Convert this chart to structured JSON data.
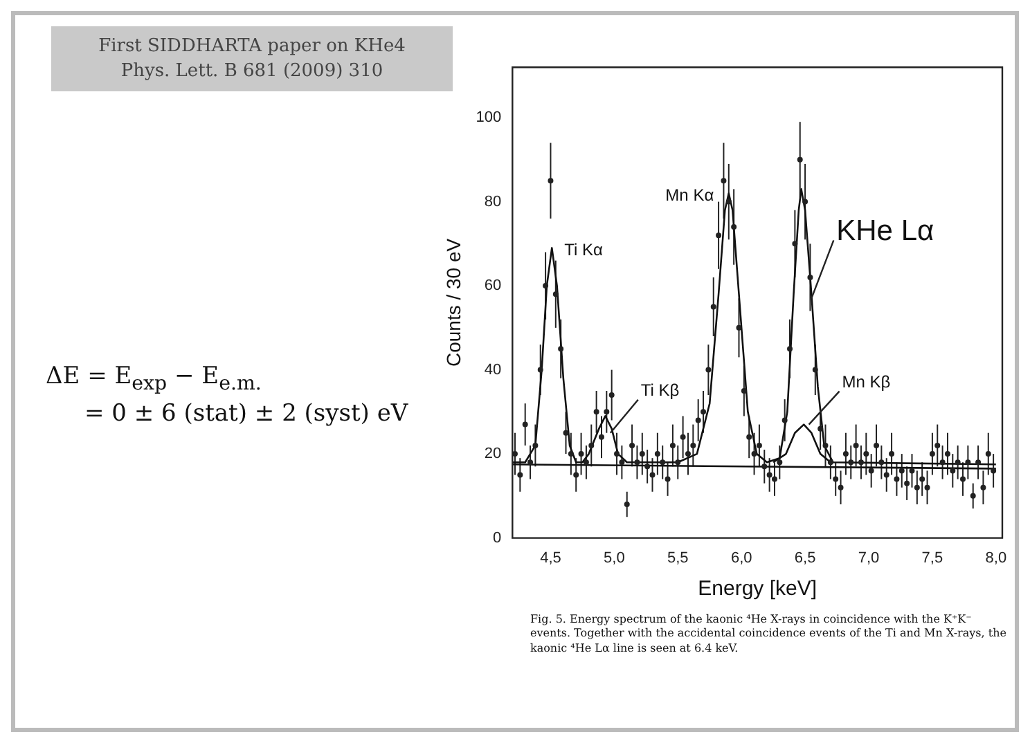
{
  "chart_data": {
    "type": "scatter",
    "title": "First SIDDHARTA paper on KHe4",
    "subtitle": "Phys. Lett. B 681 (2009) 310",
    "xlabel": "Energy [keV]",
    "ylabel": "Counts / 30 eV",
    "xlim": [
      4.2,
      8.05
    ],
    "xticks": [
      {
        "value": 4.5,
        "label": "4,5"
      },
      {
        "value": 5.0,
        "label": "5,0"
      },
      {
        "value": 5.5,
        "label": "5,5"
      },
      {
        "value": 6.0,
        "label": "6,0"
      },
      {
        "value": 6.5,
        "label": "6,5"
      },
      {
        "value": 7.0,
        "label": "7,0"
      },
      {
        "value": 7.5,
        "label": "7,5"
      },
      {
        "value": 8.0,
        "label": "8,0"
      }
    ],
    "ylim": [
      0,
      112
    ],
    "yticks": [
      0,
      20,
      40,
      60,
      80,
      100
    ],
    "grid": false,
    "legend": false,
    "series": [
      {
        "type": "scatter",
        "color": "#222222",
        "marker": "circle",
        "x": [
          4.22,
          4.26,
          4.3,
          4.34,
          4.38,
          4.42,
          4.46,
          4.5,
          4.54,
          4.58,
          4.62,
          4.66,
          4.7,
          4.74,
          4.78,
          4.82,
          4.86,
          4.9,
          4.94,
          4.98,
          5.02,
          5.06,
          5.1,
          5.14,
          5.18,
          5.22,
          5.26,
          5.3,
          5.34,
          5.38,
          5.42,
          5.46,
          5.5,
          5.54,
          5.58,
          5.62,
          5.66,
          5.7,
          5.74,
          5.78,
          5.82,
          5.86,
          5.9,
          5.94,
          5.98,
          6.02,
          6.06,
          6.1,
          6.14,
          6.18,
          6.22,
          6.26,
          6.3,
          6.34,
          6.38,
          6.42,
          6.46,
          6.5,
          6.54,
          6.58,
          6.62,
          6.66,
          6.7,
          6.74,
          6.78,
          6.82,
          6.86,
          6.9,
          6.94,
          6.98,
          7.02,
          7.06,
          7.1,
          7.14,
          7.18,
          7.22,
          7.26,
          7.3,
          7.34,
          7.38,
          7.42,
          7.46,
          7.5,
          7.54,
          7.58,
          7.62,
          7.66,
          7.7,
          7.74,
          7.78,
          7.82,
          7.86,
          7.9,
          7.94,
          7.98
        ],
        "values": [
          20,
          15,
          27,
          18,
          22,
          40,
          60,
          85,
          58,
          45,
          25,
          20,
          15,
          20,
          18,
          22,
          30,
          24,
          30,
          34,
          20,
          18,
          8,
          22,
          18,
          20,
          17,
          15,
          20,
          18,
          14,
          22,
          18,
          24,
          20,
          22,
          28,
          30,
          40,
          55,
          72,
          85,
          80,
          74,
          50,
          35,
          24,
          20,
          22,
          17,
          15,
          14,
          18,
          28,
          45,
          70,
          90,
          80,
          62,
          40,
          26,
          22,
          18,
          14,
          12,
          20,
          18,
          22,
          18,
          20,
          16,
          22,
          18,
          15,
          20,
          14,
          16,
          13,
          16,
          12,
          14,
          12,
          20,
          22,
          18,
          20,
          16,
          18,
          14,
          18,
          10,
          18,
          12,
          20,
          16
        ],
        "errors": [
          5,
          4,
          5,
          4,
          5,
          6,
          8,
          9,
          8,
          7,
          5,
          5,
          4,
          5,
          4,
          5,
          5,
          5,
          5,
          6,
          5,
          4,
          3,
          5,
          4,
          5,
          4,
          4,
          5,
          4,
          4,
          5,
          4,
          5,
          5,
          5,
          5,
          5,
          6,
          7,
          8,
          9,
          9,
          9,
          7,
          6,
          5,
          5,
          5,
          4,
          4,
          4,
          4,
          5,
          7,
          8,
          9,
          9,
          8,
          6,
          5,
          5,
          4,
          4,
          4,
          5,
          4,
          5,
          4,
          5,
          4,
          5,
          4,
          4,
          5,
          4,
          4,
          4,
          4,
          4,
          4,
          4,
          5,
          5,
          4,
          5,
          4,
          4,
          4,
          4,
          3,
          4,
          4,
          5,
          4
        ]
      },
      {
        "type": "line",
        "color": "#111111",
        "marker": "none",
        "line_style": "solid",
        "x": [
          4.2,
          4.3,
          4.38,
          4.43,
          4.47,
          4.51,
          4.55,
          4.6,
          4.65,
          4.7,
          4.75,
          4.8,
          4.88,
          4.93,
          4.98,
          5.03,
          5.1,
          5.5,
          5.65,
          5.75,
          5.82,
          5.87,
          5.9,
          5.93,
          5.98,
          6.05,
          6.12,
          6.2,
          6.3,
          6.36,
          6.41,
          6.45,
          6.47,
          6.5,
          6.55,
          6.6,
          6.65,
          6.72,
          8.0
        ],
        "values": [
          18,
          18,
          22,
          40,
          60,
          69,
          60,
          38,
          22,
          18,
          18,
          20,
          26,
          29,
          26,
          20,
          18,
          18,
          20,
          32,
          58,
          78,
          82,
          78,
          58,
          30,
          20,
          18,
          19,
          30,
          58,
          78,
          83,
          78,
          58,
          36,
          22,
          18,
          17.5
        ]
      },
      {
        "type": "line",
        "color": "#111111",
        "marker": "none",
        "line_style": "solid",
        "x": [
          6.25,
          6.35,
          6.42,
          6.49,
          6.55,
          6.62,
          6.7
        ],
        "values": [
          18,
          20,
          25,
          27,
          25,
          20,
          18
        ]
      },
      {
        "type": "line",
        "color": "#111111",
        "marker": "none",
        "line_style": "solid",
        "x": [
          4.2,
          8.0
        ],
        "values": [
          17.5,
          16.5
        ]
      }
    ],
    "annotations": [
      {
        "text": "Ti Kα",
        "x": 4.52,
        "y": 67
      },
      {
        "text": "Ti Kβ",
        "x": 4.97,
        "y": 25
      },
      {
        "text": "Mn Kα",
        "x": 5.87,
        "y": 80
      },
      {
        "text": "KHe Lα",
        "x": 6.55,
        "y": 57
      },
      {
        "text": "Mn Kβ",
        "x": 6.53,
        "y": 27
      },
      "ΔE = E$_{exp}$ − E$_{e.m.}$",
      "= 0 ± 6 (stat) ± 2 (syst) eV",
      "Fig. 5. Energy spectrum of the kaonic ⁴He X-rays in coincidence with the K⁺K⁻ events. Together with the accidental coincidence events of the Ti and Mn X-rays, the kaonic ⁴He Lα line is seen at 6.4 keV."
    ]
  }
}
